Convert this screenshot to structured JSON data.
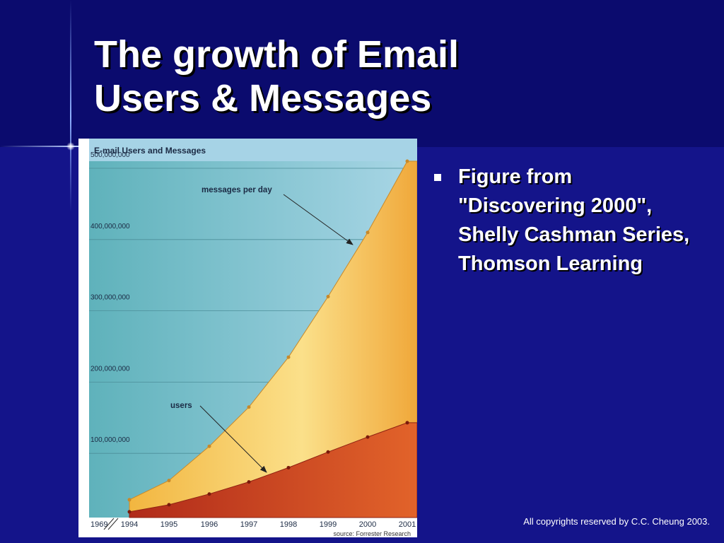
{
  "slide": {
    "title_line1": "The growth of Email",
    "title_line2": "Users & Messages",
    "bullet": "Figure from \"Discovering 2000\", Shelly Cashman Series, Thomson Learning",
    "footer": "All copyrights reserved by C.C. Cheung 2003.",
    "colors": {
      "background": "#14148a",
      "top_band": "#0b0b6e",
      "text": "#ffffff"
    }
  },
  "chart_data": {
    "type": "area",
    "title": "E-mail Users and Messages",
    "x_labels": [
      "1969",
      "1994",
      "1995",
      "1996",
      "1997",
      "1998",
      "1999",
      "2000",
      "2001"
    ],
    "y_tick_labels": [
      "500,000,000",
      "400,000,000",
      "300,000,000",
      "200,000,000",
      "100,000,000"
    ],
    "y_ticks": [
      500000000,
      400000000,
      300000000,
      200000000,
      100000000
    ],
    "ylim": [
      0,
      500000000
    ],
    "series": [
      {
        "name": "messages per day",
        "x": [
          1994,
          1995,
          1996,
          1997,
          1998,
          1999,
          2000,
          2001
        ],
        "values": [
          25000000,
          52000000,
          100000000,
          155000000,
          225000000,
          310000000,
          400000000,
          500000000
        ]
      },
      {
        "name": "users",
        "x": [
          1994,
          1995,
          1996,
          1997,
          1998,
          1999,
          2000,
          2001
        ],
        "values": [
          8000000,
          18000000,
          33000000,
          50000000,
          70000000,
          92000000,
          113000000,
          133000000
        ]
      }
    ],
    "annotations": [
      {
        "text": "messages per day",
        "points_to_year": 2000
      },
      {
        "text": "users",
        "points_to_year": 1997
      }
    ],
    "source": "source: Forrester Research",
    "grid": true,
    "colors": {
      "plot_bg": "#78bfcc",
      "messages_area": "#f7c24c",
      "users_area": "#d0471a",
      "header_bg": "#a6d3e6"
    }
  }
}
